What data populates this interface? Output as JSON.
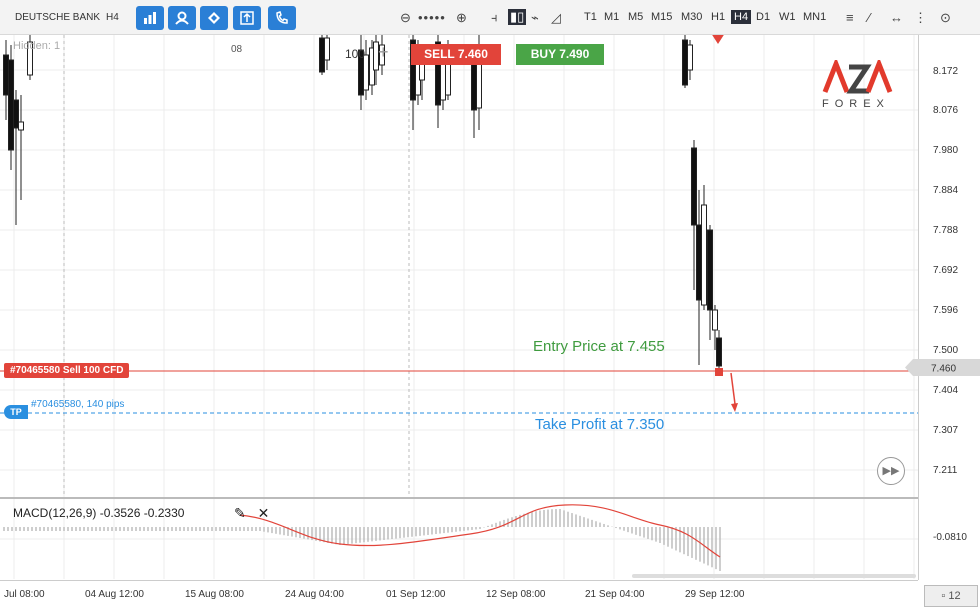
{
  "toolbar": {
    "symbol": "DEUTSCHE BANK",
    "period": "H4",
    "timeframes": [
      "T1",
      "M1",
      "M5",
      "M15",
      "M30",
      "H1",
      "H4",
      "D1",
      "W1",
      "MN1"
    ],
    "active_timeframe": "H4",
    "tool_icons": [
      "bar-chart-icon",
      "person-icon",
      "diamond-icon",
      "export-icon",
      "phone-icon"
    ]
  },
  "trade": {
    "sell_label": "SELL",
    "sell_price": "7.460",
    "buy_label": "BUY",
    "buy_price": "7.490",
    "quantity": "100",
    "hidden_label": "Hidden: 1"
  },
  "order": {
    "tag": "#70465580 Sell 100 CFD",
    "tp_badge": "TP",
    "tp_text": "#70465580, 140 pips"
  },
  "annotations": {
    "entry": "Entry Price at 7.455",
    "take_profit": "Take Profit at 7.350"
  },
  "price_axis": {
    "labels": [
      "8.172",
      "8.076",
      "7.980",
      "7.884",
      "7.788",
      "7.692",
      "7.596",
      "7.500",
      "7.404",
      "7.307",
      "7.211"
    ],
    "current": "7.460",
    "macd_label": "-0.0810"
  },
  "time_axis": {
    "labels": [
      "Jul 08:00",
      "04 Aug 12:00",
      "15 Aug 08:00",
      "24 Aug 04:00",
      "01 Sep 12:00",
      "12 Sep 08:00",
      "21 Sep 04:00",
      "29 Sep 12:00"
    ],
    "top_tick": "08"
  },
  "macd": {
    "label": "MACD(12,26,9) -0.3526 -0.2330"
  },
  "logo": {
    "brand": "AZA",
    "sub": "FOREX"
  },
  "footer": {
    "page": "12"
  }
}
